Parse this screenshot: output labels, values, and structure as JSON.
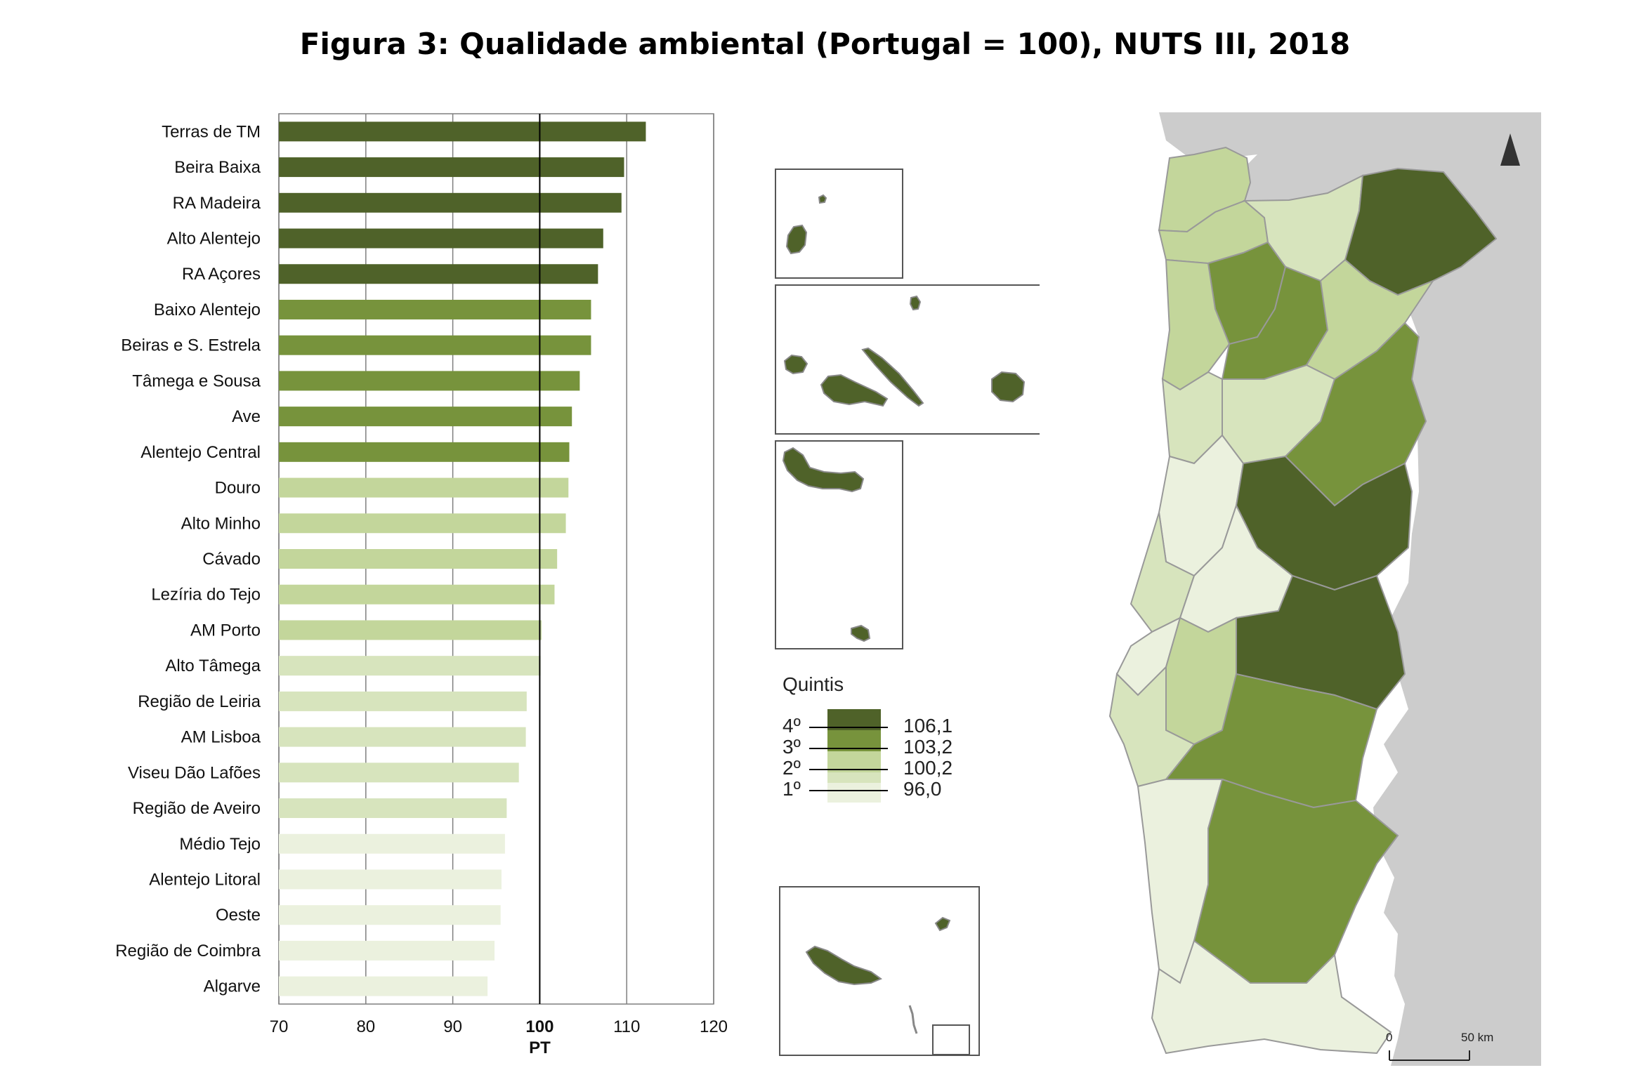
{
  "title": "Figura 3: Qualidade ambiental (Portugal = 100), NUTS III, 2018",
  "colors": {
    "q4": "#4f6229",
    "q3": "#77933c",
    "q2": "#c3d69b",
    "q1": "#d7e4bd",
    "q0": "#ebf1de",
    "land_es": "#cccccc",
    "grid": "#7f7f7f"
  },
  "chart_data": {
    "type": "bar",
    "orientation": "horizontal",
    "categories": [
      "Terras de TM",
      "Beira Baixa",
      "RA Madeira",
      "Alto Alentejo",
      "RA Açores",
      "Baixo Alentejo",
      "Beiras e S. Estrela",
      "Tâmega e Sousa",
      "Ave",
      "Alentejo Central",
      "Douro",
      "Alto Minho",
      "Cávado",
      "Lezíria do Tejo",
      "AM Porto",
      "Alto Tâmega",
      "Região de Leiria",
      "AM Lisboa",
      "Viseu Dão Lafões",
      "Região de Aveiro",
      "Médio Tejo",
      "Alentejo Litoral",
      "Oeste",
      "Região de Coimbra",
      "Algarve"
    ],
    "values": [
      112.2,
      109.7,
      109.4,
      107.3,
      106.7,
      105.9,
      105.9,
      104.6,
      103.7,
      103.4,
      103.3,
      103.0,
      102.0,
      101.7,
      100.2,
      100.1,
      98.5,
      98.4,
      97.6,
      96.2,
      96.0,
      95.6,
      95.5,
      94.8,
      94.0
    ],
    "quintile": [
      4,
      4,
      4,
      4,
      4,
      3,
      3,
      3,
      3,
      3,
      2,
      2,
      2,
      2,
      2,
      1,
      1,
      1,
      1,
      1,
      0,
      0,
      0,
      0,
      0
    ],
    "xlim": [
      70,
      120
    ],
    "xticks": [
      "70",
      "80",
      "90",
      "100",
      "110",
      "120"
    ],
    "reference_value": 100,
    "reference_label": "PT",
    "grid": true
  },
  "legend": {
    "title": "Quintis",
    "labels": [
      "4º",
      "3º",
      "2º",
      "1º"
    ],
    "thresholds": [
      "106,1",
      "103,2",
      "100,2",
      "96,0"
    ]
  },
  "scale_bar": {
    "start": "0",
    "end": "50 km"
  },
  "icons": {
    "north_arrow": "north-arrow-icon"
  }
}
